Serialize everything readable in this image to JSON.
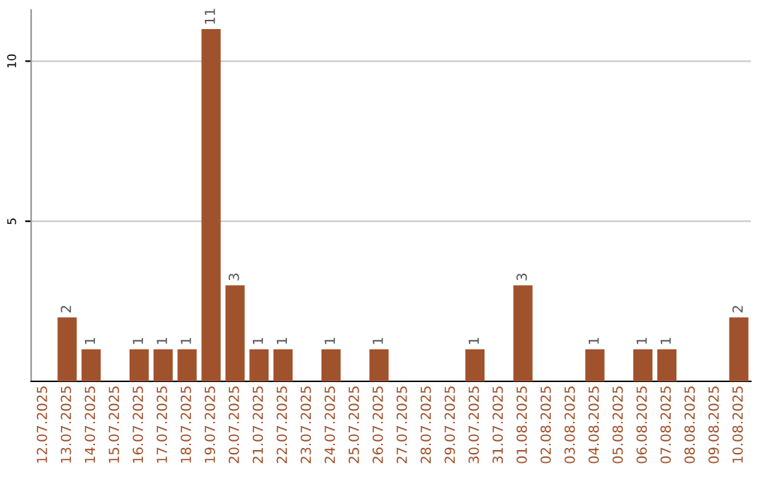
{
  "chart_data": {
    "type": "bar",
    "categories": [
      "12.07.2025",
      "13.07.2025",
      "14.07.2025",
      "15.07.2025",
      "16.07.2025",
      "17.07.2025",
      "18.07.2025",
      "19.07.2025",
      "20.07.2025",
      "21.07.2025",
      "22.07.2025",
      "23.07.2025",
      "24.07.2025",
      "25.07.2025",
      "26.07.2025",
      "27.07.2025",
      "28.07.2025",
      "29.07.2025",
      "30.07.2025",
      "31.07.2025",
      "01.08.2025",
      "02.08.2025",
      "03.08.2025",
      "04.08.2025",
      "05.08.2025",
      "06.08.2025",
      "07.08.2025",
      "08.08.2025",
      "09.08.2025",
      "10.08.2025"
    ],
    "values": [
      0,
      2,
      1,
      0,
      1,
      1,
      1,
      11,
      3,
      1,
      1,
      0,
      1,
      0,
      1,
      0,
      0,
      0,
      1,
      0,
      3,
      0,
      0,
      1,
      0,
      1,
      1,
      0,
      0,
      2
    ],
    "value_labels": [
      null,
      "2",
      "1",
      null,
      "1",
      "1",
      "1",
      "11",
      "3",
      "1",
      "1",
      null,
      "1",
      null,
      "1",
      null,
      null,
      null,
      "1",
      null,
      "3",
      null,
      null,
      "1",
      null,
      "1",
      "1",
      null,
      null,
      "2"
    ],
    "color": "#a0522d",
    "ylim": [
      0,
      11.6
    ],
    "yticks": [
      5,
      10
    ],
    "grid": "y"
  }
}
